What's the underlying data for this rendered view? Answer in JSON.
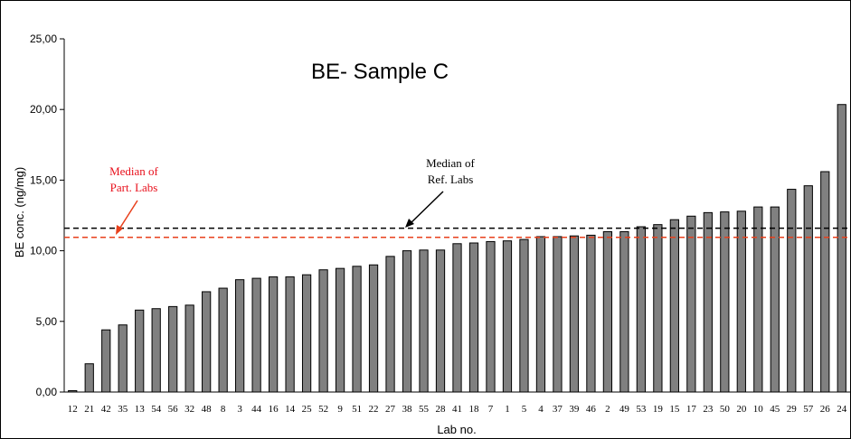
{
  "chart_data": {
    "type": "bar",
    "title": "BE- Sample C",
    "xlabel": "Lab no.",
    "ylabel": "BE conc. (ng/mg)",
    "ylim": [
      0,
      25
    ],
    "yticks": [
      "0,00",
      "5,00",
      "10,00",
      "15,00",
      "20,00",
      "25,00"
    ],
    "grid": false,
    "categories": [
      "12",
      "21",
      "42",
      "35",
      "13",
      "54",
      "56",
      "32",
      "48",
      "8",
      "3",
      "44",
      "16",
      "14",
      "25",
      "52",
      "9",
      "51",
      "22",
      "27",
      "38",
      "55",
      "28",
      "41",
      "18",
      "7",
      "1",
      "5",
      "4",
      "37",
      "39",
      "46",
      "2",
      "49",
      "53",
      "19",
      "15",
      "17",
      "23",
      "50",
      "20",
      "10",
      "45",
      "29",
      "57",
      "26",
      "24"
    ],
    "values": [
      0.1,
      2.0,
      4.4,
      4.75,
      5.8,
      5.9,
      6.05,
      6.15,
      7.1,
      7.35,
      7.95,
      8.05,
      8.15,
      8.15,
      8.3,
      8.65,
      8.75,
      8.9,
      9.0,
      9.6,
      10.0,
      10.05,
      10.05,
      10.5,
      10.55,
      10.65,
      10.7,
      10.8,
      11.0,
      11.0,
      11.05,
      11.1,
      11.35,
      11.35,
      11.7,
      11.85,
      12.2,
      12.45,
      12.7,
      12.75,
      12.8,
      13.1,
      13.1,
      14.35,
      14.6,
      15.6,
      20.35
    ],
    "bar_color": "#808080",
    "reference_lines": [
      {
        "label": "Median of Ref. Labs",
        "value": 11.6,
        "color": "#000000",
        "style": "dashed"
      },
      {
        "label": "Median of Part. Labs",
        "value": 10.95,
        "color": "#e8401c",
        "style": "dashed"
      }
    ],
    "annotations": [
      {
        "text_line1": "Median of",
        "text_line2": "Ref. Labs",
        "color": "#000000"
      },
      {
        "text_line1": "Median of",
        "text_line2": "Part. Labs",
        "color": "#e8101c"
      }
    ]
  }
}
